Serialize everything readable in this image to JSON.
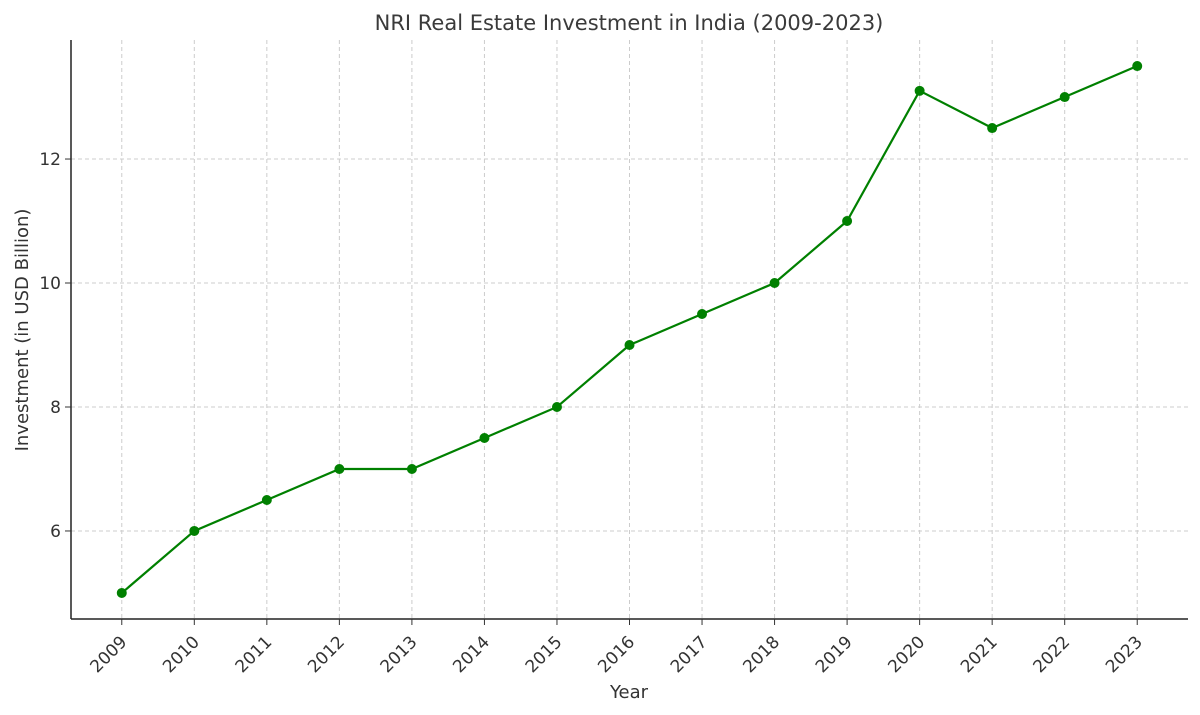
{
  "chart_data": {
    "type": "line",
    "title": "NRI Real Estate Investment in India (2009-2023)",
    "xlabel": "Year",
    "ylabel": "Investment (in USD Billion)",
    "x": [
      2009,
      2010,
      2011,
      2012,
      2013,
      2014,
      2015,
      2016,
      2017,
      2018,
      2019,
      2020,
      2021,
      2022,
      2023
    ],
    "x_tick_labels": [
      "2009",
      "2010",
      "2011",
      "2012",
      "2013",
      "2014",
      "2015",
      "2016",
      "2017",
      "2018",
      "2019",
      "2020",
      "2021",
      "2022",
      "2023"
    ],
    "series": [
      {
        "values": [
          5.0,
          6.0,
          6.5,
          7.0,
          7.0,
          7.5,
          8.0,
          9.0,
          9.5,
          10.0,
          11.0,
          13.1,
          12.5,
          13.0,
          13.5
        ],
        "color": "#008000",
        "marker": "circle"
      }
    ],
    "y_ticks": [
      6,
      8,
      10,
      12
    ],
    "y_tick_labels": [
      "6",
      "8",
      "10",
      "12"
    ],
    "xlim": [
      2008.3,
      2023.7
    ],
    "ylim": [
      4.58,
      13.92
    ],
    "grid": true
  }
}
